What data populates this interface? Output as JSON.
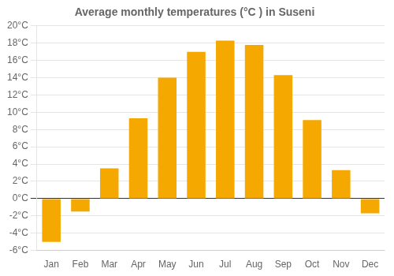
{
  "chart_data": {
    "type": "bar",
    "title": "Average monthly temperatures (°C ) in Suseni",
    "categories": [
      "Jan",
      "Feb",
      "Mar",
      "Apr",
      "May",
      "Jun",
      "Jul",
      "Aug",
      "Sep",
      "Oct",
      "Nov",
      "Dec"
    ],
    "values": [
      -5,
      -1.5,
      3.5,
      9.3,
      14.0,
      17.0,
      18.3,
      17.8,
      14.3,
      9.1,
      3.3,
      -1.7
    ],
    "color": "#F5A800",
    "ylim": [
      -6,
      20
    ],
    "yticks": [
      {
        "value": -6,
        "label": "-6°C"
      },
      {
        "value": -4,
        "label": "-4°C"
      },
      {
        "value": -2,
        "label": "-2°C"
      },
      {
        "value": 0,
        "label": "0°C"
      },
      {
        "value": 2,
        "label": "2°C"
      },
      {
        "value": 4,
        "label": "4°C"
      },
      {
        "value": 6,
        "label": "6°C"
      },
      {
        "value": 8,
        "label": "8°C"
      },
      {
        "value": 10,
        "label": "10°C"
      },
      {
        "value": 12,
        "label": "12°C"
      },
      {
        "value": 14,
        "label": "14°C"
      },
      {
        "value": 16,
        "label": "16°C"
      },
      {
        "value": 18,
        "label": "18°C"
      },
      {
        "value": 20,
        "label": "20°C"
      }
    ],
    "grid": true
  }
}
